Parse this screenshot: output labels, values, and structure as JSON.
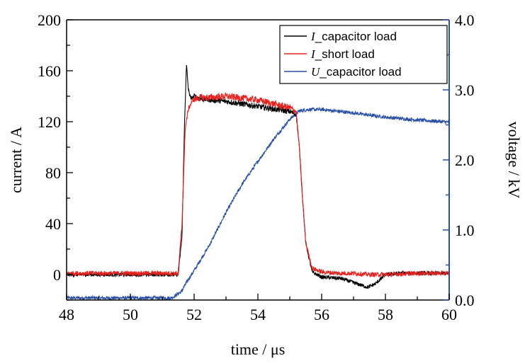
{
  "chart_data": {
    "type": "line",
    "title": "",
    "xlabel": "time / μs",
    "ylabel_left": "current / A",
    "ylabel_right": "voltage / kV",
    "xlim": [
      48,
      60
    ],
    "ylim_left": [
      -20,
      200
    ],
    "ylim_right": [
      0.0,
      4.0
    ],
    "x_ticks": [
      "48",
      "50",
      "52",
      "54",
      "56",
      "58",
      "60"
    ],
    "y_left_ticks": [
      "0",
      "40",
      "80",
      "120",
      "160",
      "200"
    ],
    "y_right_ticks": [
      "0.0",
      "1.0",
      "2.0",
      "3.0",
      "4.0"
    ],
    "grid": false,
    "legend_position": "top-right",
    "colors": {
      "i_capacitor": "#000000",
      "i_short": "#e8211d",
      "u_capacitor": "#2a4fa6",
      "right_axis": "#2a4fa6"
    },
    "series": [
      {
        "name": "_capacitor load",
        "symbol": "I",
        "axis": "left",
        "x": [
          48,
          51.5,
          51.62,
          51.7,
          51.76,
          51.82,
          51.9,
          52.0,
          52.2,
          53.0,
          54.0,
          55.0,
          55.2,
          55.3,
          55.4,
          55.5,
          55.7,
          56.0,
          56.6,
          57.2,
          57.45,
          57.7,
          58.0,
          58.5,
          60
        ],
        "y": [
          0,
          0,
          30,
          120,
          165,
          145,
          138,
          140,
          138,
          136,
          132,
          128,
          126,
          100,
          60,
          25,
          2,
          -2,
          -3,
          -8,
          -10,
          -7,
          0,
          1,
          1
        ]
      },
      {
        "name": "_short load",
        "symbol": "I",
        "axis": "left",
        "x": [
          48,
          51.5,
          51.62,
          51.72,
          51.82,
          51.95,
          52.2,
          52.5,
          53.0,
          54.0,
          55.0,
          55.2,
          55.3,
          55.4,
          55.5,
          55.7,
          56.0,
          56.5,
          57.0,
          57.5,
          58.0,
          59.0,
          60
        ],
        "y": [
          1,
          1,
          40,
          115,
          130,
          137,
          139,
          139,
          140,
          137,
          131,
          128,
          100,
          60,
          25,
          5,
          2,
          1,
          1,
          0,
          0,
          1,
          1
        ],
        "noise": 1.8
      },
      {
        "name": "_capacitor load",
        "symbol": "U",
        "axis": "right",
        "x": [
          48,
          51.3,
          51.6,
          51.8,
          52.0,
          52.5,
          53.0,
          53.5,
          54.0,
          54.5,
          55.0,
          55.3,
          55.6,
          56.0,
          57.0,
          58.0,
          59.0,
          60
        ],
        "y": [
          0.03,
          0.03,
          0.12,
          0.28,
          0.42,
          0.8,
          1.25,
          1.65,
          1.98,
          2.3,
          2.58,
          2.7,
          2.72,
          2.72,
          2.67,
          2.61,
          2.57,
          2.54
        ]
      }
    ]
  }
}
